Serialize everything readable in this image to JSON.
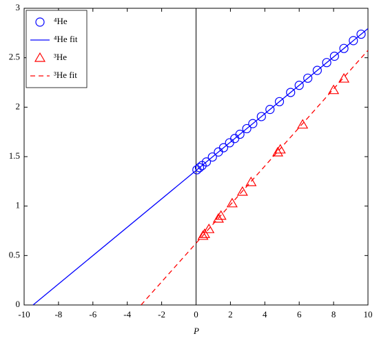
{
  "chart_data": {
    "type": "line",
    "x_label": "P",
    "xlim": [
      -10,
      10
    ],
    "xticks": [
      -10,
      -8,
      -6,
      -4,
      -2,
      0,
      2,
      4,
      6,
      8,
      10
    ],
    "ylim": [
      0,
      3
    ],
    "yticks": [
      0,
      0.5,
      1,
      1.5,
      2,
      2.5,
      3
    ],
    "zero_line": true,
    "legend": "upper left",
    "series": [
      {
        "name": "⁴He",
        "color": "#0000ff",
        "marker": "circle",
        "linestyle": "none",
        "x": [
          0.05,
          0.2,
          0.35,
          0.6,
          0.95,
          1.3,
          1.6,
          1.95,
          2.25,
          2.55,
          2.95,
          3.3,
          3.8,
          4.3,
          4.85,
          5.5,
          6.0,
          6.5,
          7.05,
          7.6,
          8.05,
          8.6,
          9.15,
          9.6
        ],
        "values": [
          1.367,
          1.389,
          1.41,
          1.446,
          1.496,
          1.547,
          1.59,
          1.64,
          1.683,
          1.726,
          1.783,
          1.834,
          1.905,
          1.977,
          2.056,
          2.149,
          2.221,
          2.293,
          2.372,
          2.451,
          2.515,
          2.594,
          2.673,
          2.738
        ]
      },
      {
        "name": "⁴He fit",
        "color": "#0000ff",
        "marker": "none",
        "linestyle": "solid",
        "x": [
          -9.48,
          10
        ],
        "values": [
          0,
          2.795
        ]
      },
      {
        "name": "³He",
        "color": "#ff0000",
        "marker": "triangle",
        "linestyle": "none",
        "x": [
          0.4,
          0.5,
          0.75,
          1.3,
          1.45,
          2.1,
          2.7,
          3.2,
          4.75,
          4.9,
          6.2,
          8.0,
          8.6
        ],
        "values": [
          0.698,
          0.717,
          0.766,
          0.872,
          0.901,
          1.027,
          1.144,
          1.241,
          1.542,
          1.571,
          1.823,
          2.172,
          2.288
        ]
      },
      {
        "name": "³He fit",
        "color": "#ff0000",
        "marker": "none",
        "linestyle": "dashed",
        "x": [
          -3.2,
          10
        ],
        "values": [
          0,
          2.575
        ]
      }
    ]
  }
}
